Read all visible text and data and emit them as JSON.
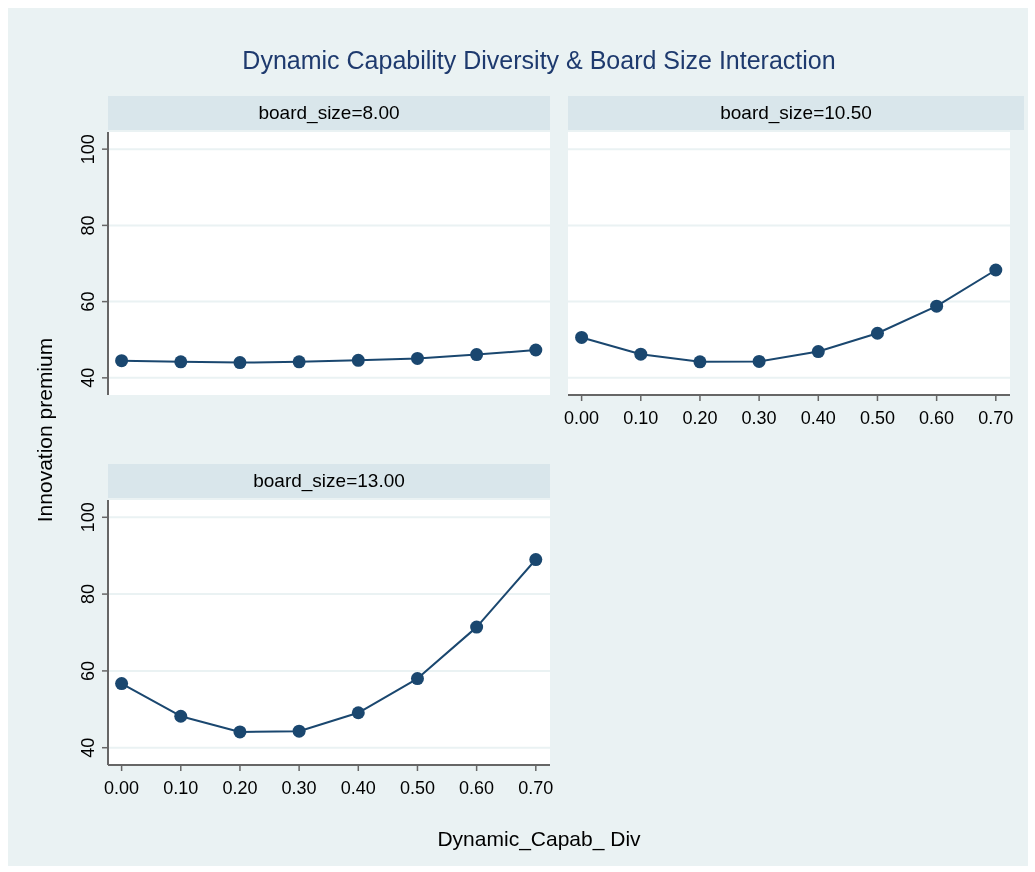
{
  "chart_data": [
    {
      "type": "line",
      "title": "board_size=8.00",
      "annotations": [
        "Dynamic Capability Diversity & Board Size Interaction"
      ],
      "ylabel": "Innovation premium",
      "x": [
        0,
        0.1,
        0.2,
        0.3,
        0.4,
        0.5,
        0.6,
        0.7
      ],
      "series": [
        {
          "color": "#1a476f",
          "values": [
            44.5,
            44.2,
            44.0,
            44.2,
            44.6,
            45.1,
            46.1,
            47.3
          ]
        }
      ],
      "xlim": [
        -0.023,
        0.724
      ],
      "ylim": [
        35.5,
        104.5
      ],
      "yticks": [
        40,
        60,
        80,
        100
      ],
      "tick_labels": "y",
      "grid": "y",
      "marker": "circle"
    },
    {
      "type": "line",
      "title": "board_size=10.50",
      "x": [
        0,
        0.1,
        0.2,
        0.3,
        0.4,
        0.5,
        0.6,
        0.7
      ],
      "series": [
        {
          "color": "#1a476f",
          "values": [
            50.6,
            46.2,
            44.2,
            44.3,
            46.9,
            51.7,
            58.8,
            68.3
          ]
        }
      ],
      "xlim": [
        -0.023,
        0.724
      ],
      "ylim": [
        35.5,
        104.5
      ],
      "xticks": [
        {
          "value": 0,
          "label": "0.00"
        },
        {
          "value": 0.1,
          "label": "0.10"
        },
        {
          "value": 0.2,
          "label": "0.20"
        },
        {
          "value": 0.3,
          "label": "0.30"
        },
        {
          "value": 0.4,
          "label": "0.40"
        },
        {
          "value": 0.5,
          "label": "0.50"
        },
        {
          "value": 0.6,
          "label": "0.60"
        },
        {
          "value": 0.7,
          "label": "0.70"
        }
      ],
      "yticks": [
        40,
        60,
        80,
        100
      ],
      "tick_labels": "x",
      "grid": "y",
      "marker": "circle"
    },
    {
      "type": "line",
      "title": "board_size=13.00",
      "xlabel": "Dynamic_Capab_ Div",
      "x": [
        0,
        0.1,
        0.2,
        0.3,
        0.4,
        0.5,
        0.6,
        0.7
      ],
      "series": [
        {
          "color": "#1a476f",
          "values": [
            56.7,
            48.2,
            44.1,
            44.3,
            49.1,
            58.0,
            71.4,
            89.0
          ]
        }
      ],
      "xlim": [
        -0.023,
        0.724
      ],
      "ylim": [
        35.5,
        104.5
      ],
      "xticks": [
        {
          "value": 0,
          "label": "0.00"
        },
        {
          "value": 0.1,
          "label": "0.10"
        },
        {
          "value": 0.2,
          "label": "0.20"
        },
        {
          "value": 0.3,
          "label": "0.30"
        },
        {
          "value": 0.4,
          "label": "0.40"
        },
        {
          "value": 0.5,
          "label": "0.50"
        },
        {
          "value": 0.6,
          "label": "0.60"
        },
        {
          "value": 0.7,
          "label": "0.70"
        }
      ],
      "yticks": [
        40,
        60,
        80,
        100
      ],
      "grid": "y",
      "marker": "circle"
    }
  ]
}
